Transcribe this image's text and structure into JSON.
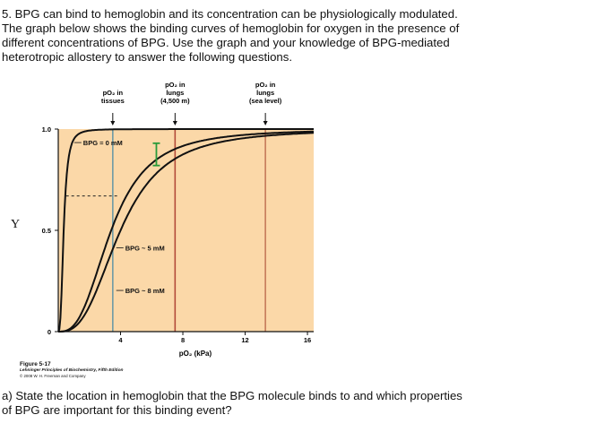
{
  "question": {
    "lines": [
      "5. BPG can bind to hemoglobin and its concentration can be physiologically modulated.",
      "The graph below shows the binding curves of hemoglobin for oxygen in the presence of",
      "different concentrations of BPG.  Use the graph and your knowledge of BPG-mediated",
      "heterotropic allostery to answer the following questions."
    ]
  },
  "y_letter": "Y",
  "chart_data": {
    "type": "line",
    "xlabel": "pO₂ (kPa)",
    "ylabel": "",
    "xlim": [
      0,
      16.4
    ],
    "ylim": [
      0,
      1.0
    ],
    "x_ticks": [
      {
        "value": 4,
        "label": "4"
      },
      {
        "value": 8,
        "label": "8"
      },
      {
        "value": 12,
        "label": "12"
      },
      {
        "value": 16,
        "label": "16"
      }
    ],
    "y_ticks": [
      {
        "value": 0,
        "label": "0"
      },
      {
        "value": 0.5,
        "label": "0.5"
      },
      {
        "value": 1.0,
        "label": "1.0"
      }
    ],
    "grid": false,
    "series": [
      {
        "name": "BPG = 0 mM",
        "p50": 0.35,
        "hill_n": 2.8
      },
      {
        "name": "BPG ~ 5 mM",
        "p50": 3.4,
        "hill_n": 2.8
      },
      {
        "name": "BPG ~ 8 mM",
        "p50": 4.0,
        "hill_n": 2.8
      }
    ],
    "series_labels": [
      {
        "text": "BPG = 0 mM",
        "x": 1.6,
        "y": 0.92
      },
      {
        "text": "BPG ~ 5 mM",
        "x": 4.3,
        "y": 0.4
      },
      {
        "text": "BPG ~ 8 mM",
        "x": 4.3,
        "y": 0.19
      }
    ],
    "reference_lines": [
      {
        "x": 3.5,
        "color": "#6e9aa6",
        "label_lines": [
          "pO₂ in",
          "tissues"
        ]
      },
      {
        "x": 7.5,
        "color": "#b24a3a",
        "label_lines": [
          "pO₂ in",
          "lungs",
          "(4,500 m)"
        ]
      },
      {
        "x": 13.3,
        "color": "#c47a5a",
        "label_lines": [
          "pO₂ in",
          "lungs",
          "(sea level)"
        ]
      }
    ],
    "annotations": [
      {
        "type": "difference-bracket",
        "x": 6.3,
        "y_from": 0.82,
        "y_to": 0.93,
        "color": "#2a9a3a"
      },
      {
        "type": "dashed-segment",
        "x1": 0.5,
        "x2": 3.9,
        "y": 0.67,
        "color": "#222222"
      }
    ],
    "colors": {
      "plot_background": "#fbd8a8",
      "curve": "#111111"
    }
  },
  "figure": {
    "title": "Figure 5-17",
    "source": "Lehninger Principles of Biochemistry, Fifth Edition",
    "copyright": "© 2008 W. H. Freeman and Company"
  },
  "subquestion": {
    "lines": [
      "a) State the location in hemoglobin that the BPG molecule binds to and which properties",
      "of BPG are important for this binding event?"
    ]
  }
}
